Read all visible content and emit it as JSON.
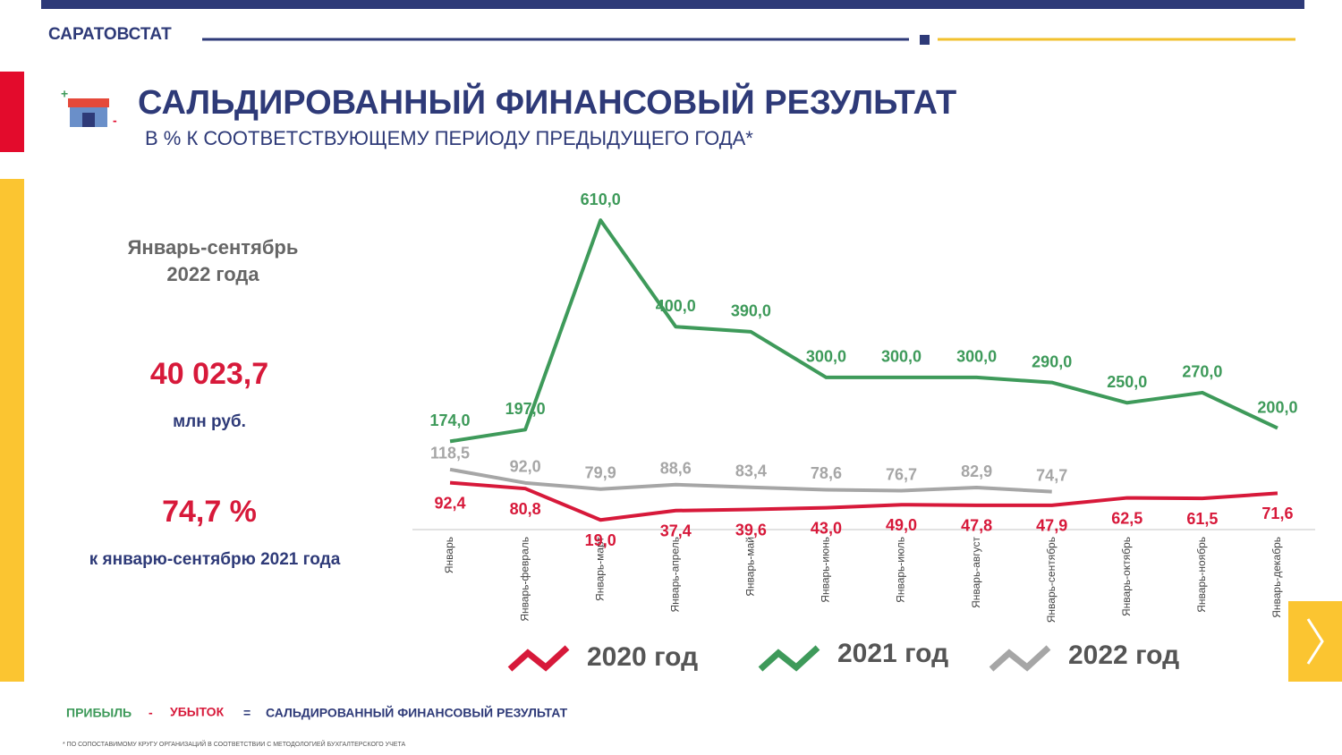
{
  "header": {
    "org": "САРАТОВСТАТ",
    "title": "САЛЬДИРОВАННЫЙ ФИНАНСОВЫЙ РЕЗУЛЬТАТ",
    "subtitle": "В % К СООТВЕТСТВУЮЩЕМУ ПЕРИОДУ ПРЕДЫДУЩЕГО ГОДА*"
  },
  "summary": {
    "period": [
      "Январь-сентябрь",
      "2022 года"
    ],
    "amount": "40 023,7",
    "unit": "млн руб.",
    "percent": "74,7 %",
    "percent_note": "к январю-сентябрю 2021 года"
  },
  "formula": [
    "ПРИБЫЛЬ",
    "-",
    "УБЫТОК",
    "=",
    "САЛЬДИРОВАННЫЙ ФИНАНСОВЫЙ РЕЗУЛЬТАТ"
  ],
  "footnote": "* ПО СОПОСТАВИМОМУ КРУГУ ОРГАНИЗАЦИЙ В СООТВЕТСТВИИ С МЕТОДОЛОГИЕЙ БУХГАЛТЕРСКОГО УЧЕТА",
  "chart_data": {
    "type": "line",
    "categories": [
      "Январь",
      "Январь-февраль",
      "Январь-март",
      "Январь-апрель",
      "Январь-май",
      "Январь-июнь",
      "Январь-июль",
      "Январь-август",
      "Январь-сентябрь",
      "Январь-октябрь",
      "Январь-ноябрь",
      "Январь-декабрь"
    ],
    "ylim": [
      0,
      650
    ],
    "series": [
      {
        "name": "2020 год",
        "color": "#d7193a",
        "label_side": "below",
        "values": [
          92.4,
          80.8,
          19.0,
          37.4,
          39.6,
          43.0,
          49.0,
          47.8,
          47.9,
          62.5,
          61.5,
          71.6
        ],
        "value_labels": [
          "92,4",
          "80,8",
          "19,0",
          "37,4",
          "39,6",
          "43,0",
          "49,0",
          "47,8",
          "47,9",
          "62,5",
          "61,5",
          "71,6"
        ]
      },
      {
        "name": "2021 год",
        "color": "#3e9a5a",
        "label_side": "above",
        "values": [
          174.0,
          197.0,
          610.0,
          400.0,
          390.0,
          300.0,
          300.0,
          300.0,
          290.0,
          250.0,
          270.0,
          200.0
        ],
        "value_labels": [
          "174,0",
          "197,0",
          "610,0",
          "400,0",
          "390,0",
          "300,0",
          "300,0",
          "300,0",
          "290,0",
          "250,0",
          "270,0",
          "200,0"
        ]
      },
      {
        "name": "2022 год",
        "color": "#a6a6a6",
        "label_side": "above",
        "values": [
          118.5,
          92.0,
          79.9,
          88.6,
          83.4,
          78.6,
          76.7,
          82.9,
          74.7,
          null,
          null,
          null
        ],
        "value_labels": [
          "118,5",
          "92,0",
          "79,9",
          "88,6",
          "83,4",
          "78,6",
          "76,7",
          "82,9",
          "74,7",
          null,
          null,
          null
        ]
      }
    ]
  }
}
